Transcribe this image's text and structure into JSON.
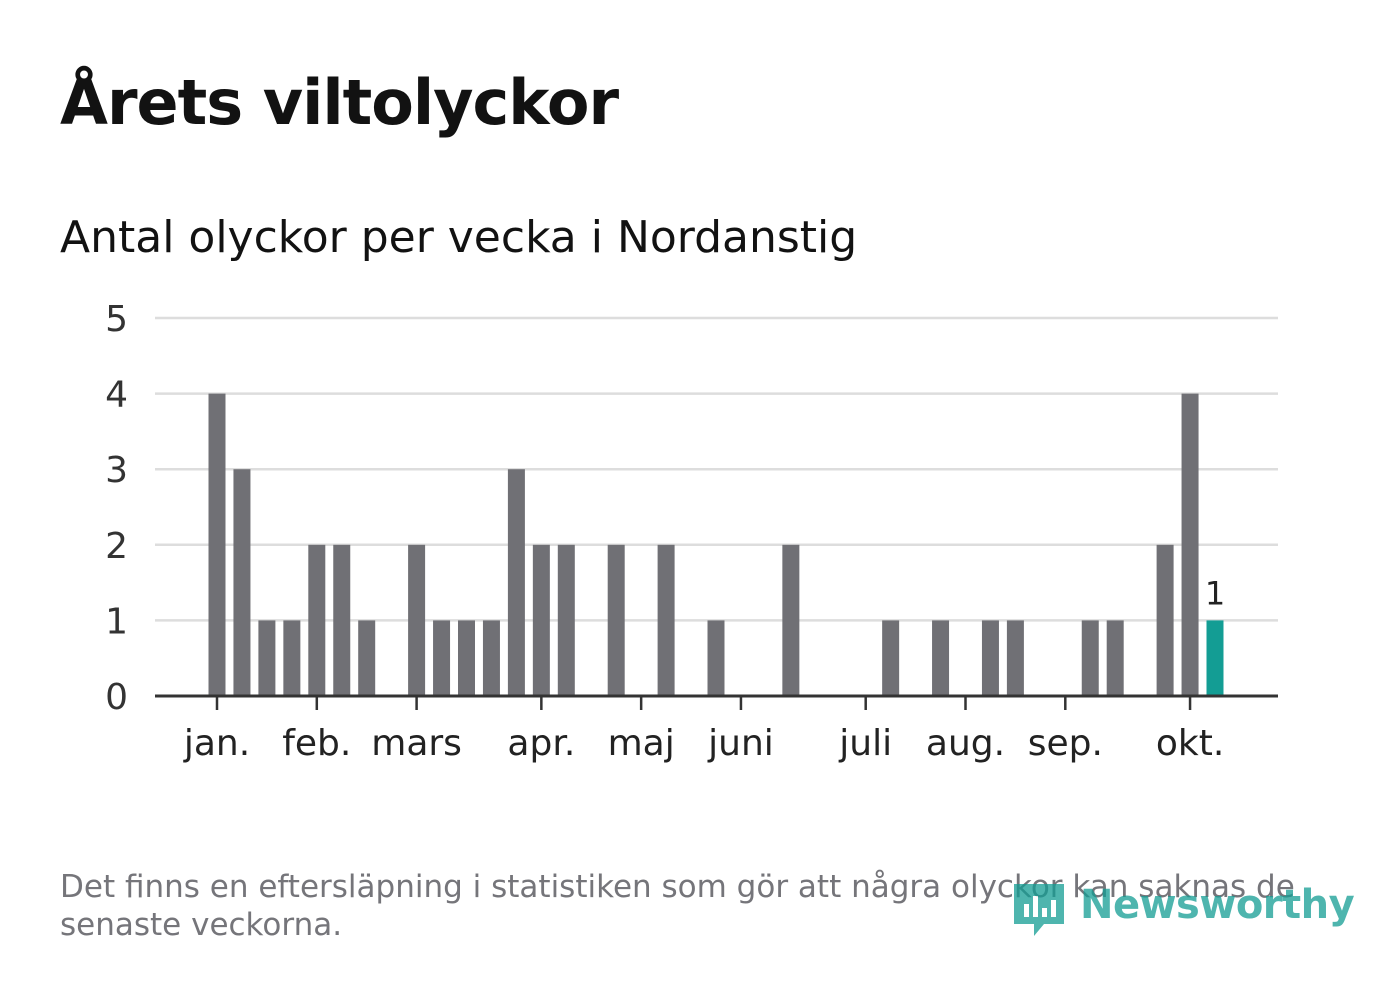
{
  "title": "Årets viltolyckor",
  "subtitle": "Antal olyckor per vecka i Nordanstig",
  "footnote": "Det finns en eftersläpning i statistiken som gör att några olyckor kan saknas de senaste veckorna.",
  "brand": {
    "name": "Newsworthy",
    "color": "#139d94"
  },
  "colors": {
    "bar": "#707075",
    "highlight": "#139d94",
    "grid": "#dddddd",
    "axis": "#333333"
  },
  "chart_data": {
    "type": "bar",
    "title": "Antal olyckor per vecka i Nordanstig",
    "xlabel": "",
    "ylabel": "",
    "ylim": [
      0,
      5
    ],
    "yticks": [
      "0",
      "1",
      "2",
      "3",
      "4",
      "5"
    ],
    "grid": true,
    "weeks": [
      1,
      2,
      3,
      4,
      5,
      6,
      7,
      8,
      9,
      10,
      11,
      12,
      13,
      14,
      15,
      16,
      17,
      18,
      19,
      20,
      21,
      22,
      23,
      24,
      25,
      26,
      27,
      28,
      29,
      30,
      31,
      32,
      33,
      34,
      35,
      36,
      37,
      38,
      39,
      40,
      41
    ],
    "values": [
      4,
      3,
      1,
      1,
      2,
      2,
      1,
      0,
      2,
      1,
      1,
      1,
      3,
      2,
      2,
      0,
      2,
      0,
      2,
      0,
      1,
      0,
      0,
      2,
      0,
      0,
      0,
      1,
      0,
      1,
      0,
      1,
      1,
      0,
      0,
      1,
      1,
      0,
      2,
      4,
      1
    ],
    "highlight_index": 40,
    "highlight_label": "1",
    "months": [
      {
        "label": "jan.",
        "week": 1
      },
      {
        "label": "feb.",
        "week": 5
      },
      {
        "label": "mars",
        "week": 9
      },
      {
        "label": "apr.",
        "week": 14
      },
      {
        "label": "maj",
        "week": 18
      },
      {
        "label": "juni",
        "week": 22
      },
      {
        "label": "juli",
        "week": 27
      },
      {
        "label": "aug.",
        "week": 31
      },
      {
        "label": "sep.",
        "week": 35
      },
      {
        "label": "okt.",
        "week": 40
      }
    ]
  }
}
